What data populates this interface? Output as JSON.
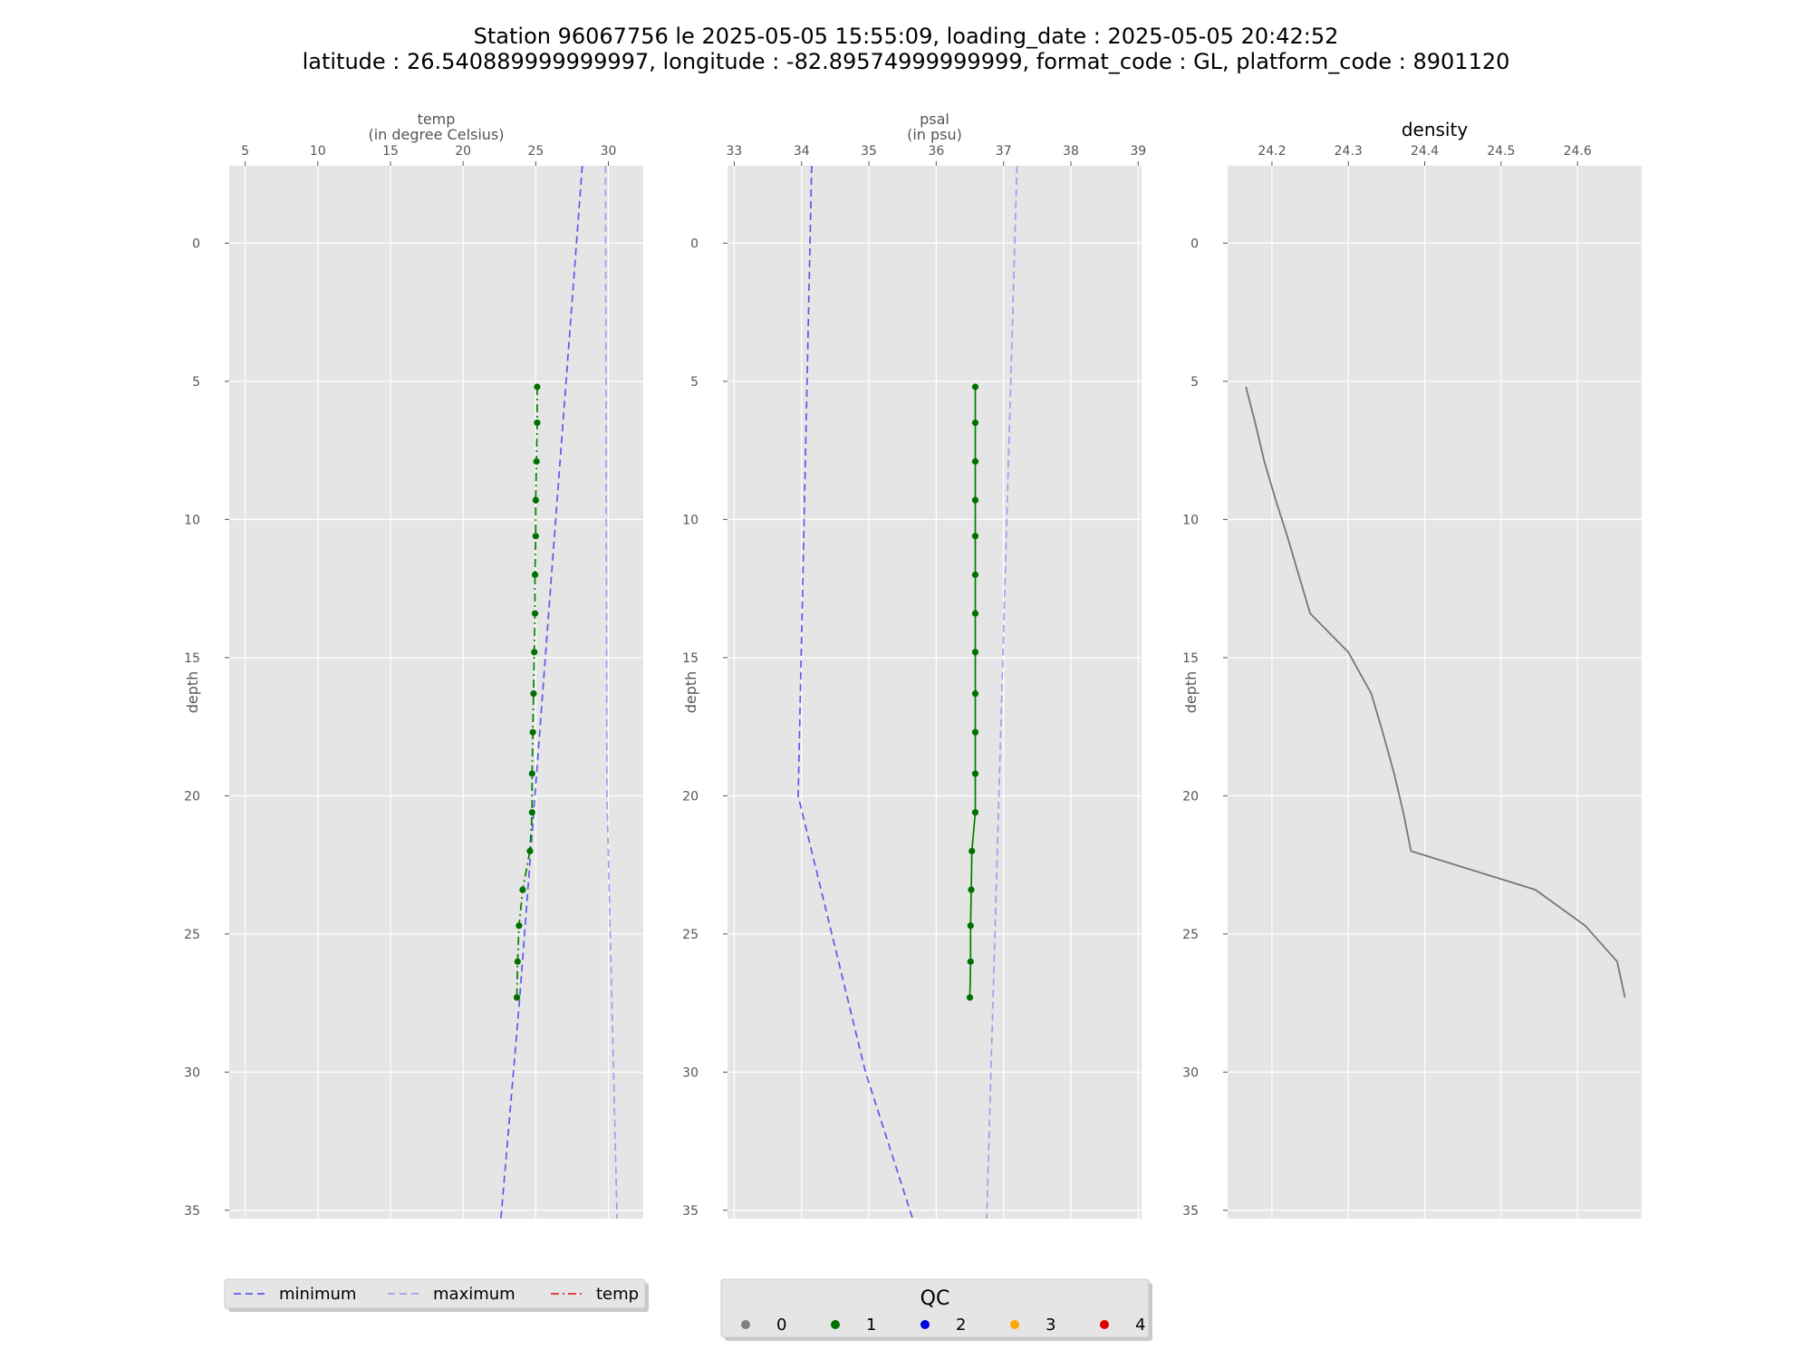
{
  "title": {
    "line1": "Station 96067756 le 2025-05-05 15:55:09, loading_date : 2025-05-05 20:42:52",
    "line2": "latitude : 26.540889999999997, longitude : -82.89574999999999, format_code : GL, platform_code : 8901120"
  },
  "colors": {
    "panel_bg": "#e5e5e5",
    "grid": "#ffffff",
    "minimum": "#5a5af0",
    "maximum": "#a0a0ee",
    "temp_line": "#008000",
    "qc_point": "#007000",
    "density_line": "#777777",
    "legend_temp": "#e03030"
  },
  "legend_profiles": {
    "items": [
      {
        "label": "minimum",
        "style": "dashed",
        "color": "#5a5af0"
      },
      {
        "label": "maximum",
        "style": "dashed",
        "color": "#a0a0ee"
      },
      {
        "label": "temp",
        "style": "dashdot",
        "color": "#e03030"
      }
    ]
  },
  "legend_qc": {
    "title": "QC",
    "items": [
      {
        "label": "0",
        "color": "#808080"
      },
      {
        "label": "1",
        "color": "#007000"
      },
      {
        "label": "2",
        "color": "#0000e0"
      },
      {
        "label": "3",
        "color": "#ffa500"
      },
      {
        "label": "4",
        "color": "#e00000"
      }
    ]
  },
  "chart_data": [
    {
      "type": "line",
      "xlabel_line1": "temp",
      "xlabel_line2": "(in degree Celsius)",
      "ylabel": "depth",
      "x_axis_position": "top",
      "y_inverted": true,
      "grid": true,
      "xlim": [
        3.9,
        32.4
      ],
      "ylim": [
        35.3,
        -2.8
      ],
      "xticks": [
        5,
        10,
        15,
        20,
        25,
        30
      ],
      "yticks": [
        0,
        5,
        10,
        15,
        20,
        25,
        30,
        35
      ],
      "series": [
        {
          "name": "minimum",
          "style": "dashed",
          "points": [
            [
              28.2,
              -2.8
            ],
            [
              23.9,
              27.3
            ],
            [
              22.6,
              35.3
            ]
          ]
        },
        {
          "name": "maximum",
          "style": "dashed",
          "points": [
            [
              29.8,
              -2.8
            ],
            [
              29.9,
              20.0
            ],
            [
              30.6,
              35.3
            ]
          ]
        },
        {
          "name": "temp",
          "style": "dashdot",
          "qc": 1,
          "points": [
            [
              25.1,
              5.2
            ],
            [
              25.1,
              6.5
            ],
            [
              25.05,
              7.9
            ],
            [
              25.0,
              9.3
            ],
            [
              25.0,
              10.6
            ],
            [
              24.95,
              12.0
            ],
            [
              24.95,
              13.4
            ],
            [
              24.9,
              14.8
            ],
            [
              24.85,
              16.3
            ],
            [
              24.8,
              17.7
            ],
            [
              24.75,
              19.2
            ],
            [
              24.75,
              20.6
            ],
            [
              24.6,
              22.0
            ],
            [
              24.1,
              23.4
            ],
            [
              23.85,
              24.7
            ],
            [
              23.75,
              26.0
            ],
            [
              23.7,
              27.3
            ]
          ]
        }
      ]
    },
    {
      "type": "line",
      "xlabel_line1": "psal",
      "xlabel_line2": "(in psu)",
      "ylabel": "depth",
      "x_axis_position": "top",
      "y_inverted": true,
      "grid": true,
      "xlim": [
        32.9,
        39.05
      ],
      "ylim": [
        35.3,
        -2.8
      ],
      "xticks": [
        33,
        34,
        35,
        36,
        37,
        38,
        39
      ],
      "yticks": [
        0,
        5,
        10,
        15,
        20,
        25,
        30,
        35
      ],
      "series": [
        {
          "name": "minimum",
          "style": "dashed",
          "points": [
            [
              34.15,
              -2.8
            ],
            [
              33.95,
              20.0
            ],
            [
              34.95,
              30.0
            ],
            [
              35.65,
              35.3
            ]
          ]
        },
        {
          "name": "maximum",
          "style": "dashed",
          "points": [
            [
              37.2,
              -2.8
            ],
            [
              36.75,
              35.3
            ]
          ]
        },
        {
          "name": "psal",
          "style": "solid",
          "qc": 1,
          "points": [
            [
              36.58,
              5.2
            ],
            [
              36.58,
              6.5
            ],
            [
              36.58,
              7.9
            ],
            [
              36.58,
              9.3
            ],
            [
              36.58,
              10.6
            ],
            [
              36.58,
              12.0
            ],
            [
              36.58,
              13.4
            ],
            [
              36.58,
              14.8
            ],
            [
              36.58,
              16.3
            ],
            [
              36.58,
              17.7
            ],
            [
              36.58,
              19.2
            ],
            [
              36.58,
              20.6
            ],
            [
              36.53,
              22.0
            ],
            [
              36.52,
              23.4
            ],
            [
              36.51,
              24.7
            ],
            [
              36.51,
              26.0
            ],
            [
              36.5,
              27.3
            ]
          ]
        }
      ]
    },
    {
      "type": "line",
      "title": "density",
      "ylabel": "depth",
      "x_axis_position": "top",
      "y_inverted": true,
      "grid": true,
      "xlim": [
        24.142,
        24.684
      ],
      "ylim": [
        35.3,
        -2.8
      ],
      "xticks": [
        24.2,
        24.3,
        24.4,
        24.5,
        24.6
      ],
      "yticks": [
        0,
        5,
        10,
        15,
        20,
        25,
        30,
        35
      ],
      "series": [
        {
          "name": "density",
          "style": "solid",
          "points": [
            [
              24.166,
              5.2
            ],
            [
              24.178,
              6.5
            ],
            [
              24.19,
              7.9
            ],
            [
              24.205,
              9.3
            ],
            [
              24.22,
              10.6
            ],
            [
              24.235,
              12.0
            ],
            [
              24.25,
              13.4
            ],
            [
              24.3,
              14.8
            ],
            [
              24.33,
              16.3
            ],
            [
              24.345,
              17.7
            ],
            [
              24.36,
              19.2
            ],
            [
              24.372,
              20.6
            ],
            [
              24.382,
              22.0
            ],
            [
              24.545,
              23.4
            ],
            [
              24.61,
              24.7
            ],
            [
              24.652,
              26.0
            ],
            [
              24.662,
              27.3
            ]
          ]
        }
      ]
    }
  ]
}
